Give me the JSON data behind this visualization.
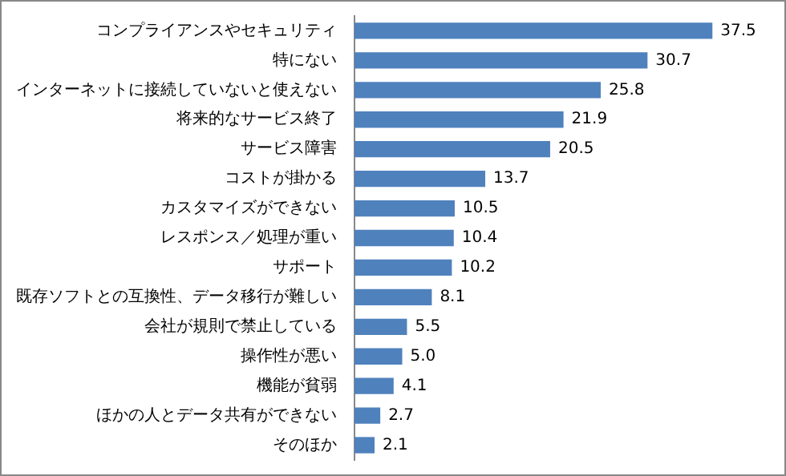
{
  "chart_data": {
    "type": "bar",
    "orientation": "horizontal",
    "categories": [
      "コンプライアンスやセキュリティ",
      "特にない",
      "インターネットに接続していないと使えない",
      "将来的なサービス終了",
      "サービス障害",
      "コストが掛かる",
      "カスタマイズができない",
      "レスポンス／処理が重い",
      "サポート",
      "既存ソフトとの互換性、データ移行が難しい",
      "会社が規則で禁止している",
      "操作性が悪い",
      "機能が貧弱",
      "ほかの人とデータ共有ができない",
      "そのほか"
    ],
    "values": [
      37.5,
      30.7,
      25.8,
      21.9,
      20.5,
      13.7,
      10.5,
      10.4,
      10.2,
      8.1,
      5.5,
      5.0,
      4.1,
      2.7,
      2.1
    ],
    "value_labels": [
      "37.5",
      "30.7",
      "25.8",
      "21.9",
      "20.5",
      "13.7",
      "10.5",
      "10.4",
      "10.2",
      "8.1",
      "5.5",
      "5.0",
      "4.1",
      "2.7",
      "2.1"
    ],
    "color": "#4f81bd",
    "tick_labels": "y"
  }
}
